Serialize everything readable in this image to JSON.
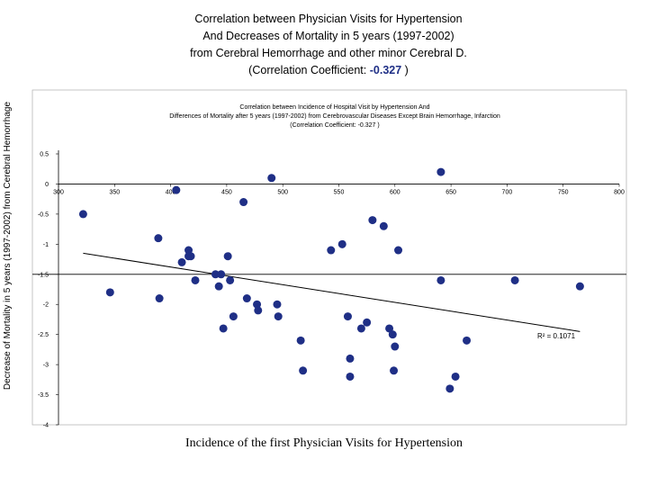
{
  "slide": {
    "title_lines": [
      "Correlation between Physician Visits for Hypertension",
      "And Decreases of Mortality in 5 years (1997-2002)",
      "from Cerebral Hemorrhage and other minor Cerebral D.",
      "(Correlation Coefficient: "
    ],
    "coef_value": "-0.327",
    "title_close": " )",
    "y_axis_label": "Decrease of  Mortality in 5 years (1997-2002) from Cerebral Hemorrhage",
    "x_axis_label": "Incidence of the first Physician Visits for Hypertension"
  },
  "chart_data": {
    "type": "scatter",
    "title_lines": [
      "Correlation between Incidence of Hospital Visit by Hypertension  And",
      "Differences of Mortality after 5 years (1997-2002) from Cerebrovascular Diseases Except Brain Hemorrhage, Infarction",
      "(Correlation Coefficient: -0.327 )"
    ],
    "xlim": [
      300,
      800
    ],
    "ylim": [
      -4,
      0.5
    ],
    "x_ticks": [
      "300",
      "350",
      "400",
      "450",
      "500",
      "550",
      "600",
      "650",
      "700",
      "750",
      "800"
    ],
    "y_ticks": [
      "0.5",
      "0",
      "-0.5",
      "-1",
      "-1.5",
      "-2",
      "-2.5",
      "-3",
      "-3.5",
      "-4"
    ],
    "axis_crossing_y": 0,
    "grid": false,
    "reference_line_y": -1.5,
    "marker_color": "#1f2f86",
    "trendline": {
      "x1": 322,
      "y1": -1.15,
      "x2": 765,
      "y2": -2.45
    },
    "r2_label": "R² = 0.1071",
    "points": [
      {
        "x": 322,
        "y": -0.5
      },
      {
        "x": 346,
        "y": -1.8
      },
      {
        "x": 389,
        "y": -0.9
      },
      {
        "x": 390,
        "y": -1.9
      },
      {
        "x": 405,
        "y": -0.1
      },
      {
        "x": 410,
        "y": -1.3
      },
      {
        "x": 416,
        "y": -1.1
      },
      {
        "x": 416,
        "y": -1.2
      },
      {
        "x": 418,
        "y": -1.2
      },
      {
        "x": 422,
        "y": -1.6
      },
      {
        "x": 440,
        "y": -1.5
      },
      {
        "x": 443,
        "y": -1.7
      },
      {
        "x": 445,
        "y": -1.5
      },
      {
        "x": 447,
        "y": -2.4
      },
      {
        "x": 451,
        "y": -1.2
      },
      {
        "x": 453,
        "y": -1.6
      },
      {
        "x": 456,
        "y": -2.2
      },
      {
        "x": 465,
        "y": -0.3
      },
      {
        "x": 468,
        "y": -1.9
      },
      {
        "x": 477,
        "y": -2.0
      },
      {
        "x": 478,
        "y": -2.1
      },
      {
        "x": 490,
        "y": 0.1
      },
      {
        "x": 495,
        "y": -2.0
      },
      {
        "x": 496,
        "y": -2.2
      },
      {
        "x": 516,
        "y": -2.6
      },
      {
        "x": 518,
        "y": -3.1
      },
      {
        "x": 543,
        "y": -1.1
      },
      {
        "x": 553,
        "y": -1.0
      },
      {
        "x": 558,
        "y": -2.2
      },
      {
        "x": 560,
        "y": -2.9
      },
      {
        "x": 560,
        "y": -3.2
      },
      {
        "x": 570,
        "y": -2.4
      },
      {
        "x": 575,
        "y": -2.3
      },
      {
        "x": 580,
        "y": -0.6
      },
      {
        "x": 590,
        "y": -0.7
      },
      {
        "x": 595,
        "y": -2.4
      },
      {
        "x": 598,
        "y": -2.5
      },
      {
        "x": 599,
        "y": -3.1
      },
      {
        "x": 600,
        "y": -2.7
      },
      {
        "x": 603,
        "y": -1.1
      },
      {
        "x": 641,
        "y": 0.2
      },
      {
        "x": 641,
        "y": -1.6
      },
      {
        "x": 649,
        "y": -3.4
      },
      {
        "x": 654,
        "y": -3.2
      },
      {
        "x": 664,
        "y": -2.6
      },
      {
        "x": 707,
        "y": -1.6
      },
      {
        "x": 765,
        "y": -1.7
      }
    ]
  }
}
